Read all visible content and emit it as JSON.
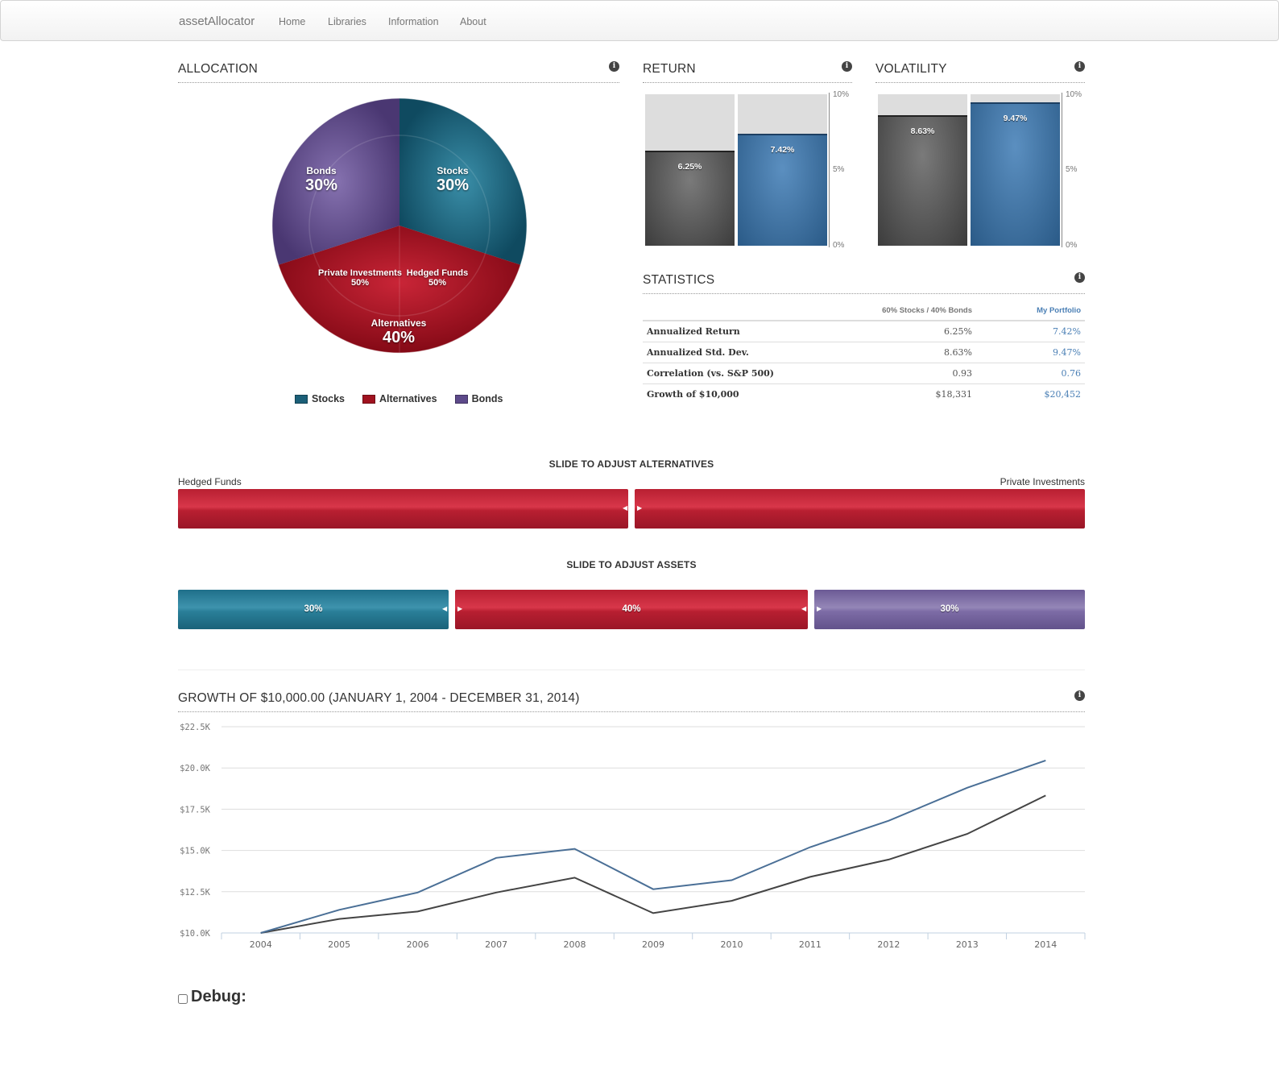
{
  "nav": {
    "brand": "assetAllocator",
    "items": [
      "Home",
      "Libraries",
      "Information",
      "About"
    ]
  },
  "allocation": {
    "title": "ALLOCATION",
    "info_icon": "info-icon",
    "slices": [
      {
        "name": "Stocks",
        "pct": "30%",
        "color": "#1b5f78"
      },
      {
        "name": "Alternatives",
        "pct": "40%",
        "color": "#a0121f"
      },
      {
        "name": "Bonds",
        "pct": "30%",
        "color": "#5d4a8a"
      }
    ],
    "inner": [
      {
        "name": "Private Investments",
        "pct": "50%"
      },
      {
        "name": "Hedged Funds",
        "pct": "50%"
      }
    ],
    "legend": [
      "Stocks",
      "Alternatives",
      "Bonds"
    ]
  },
  "return": {
    "title": "RETURN",
    "ticks": [
      "10%",
      "5%",
      "0%"
    ],
    "values": [
      {
        "label": "6.25%",
        "value": 6.25
      },
      {
        "label": "7.42%",
        "value": 7.42
      }
    ]
  },
  "volatility": {
    "title": "VOLATILITY",
    "ticks": [
      "10%",
      "5%",
      "0%"
    ],
    "values": [
      {
        "label": "8.63%",
        "value": 8.63
      },
      {
        "label": "9.47%",
        "value": 9.47
      }
    ]
  },
  "statistics": {
    "title": "STATISTICS",
    "col1": "60% Stocks / 40% Bonds",
    "col2": "My Portfolio",
    "rows": [
      {
        "label": "Annualized Return",
        "v1": "6.25%",
        "v2": "7.42%"
      },
      {
        "label": "Annualized Std. Dev.",
        "v1": "8.63%",
        "v2": "9.47%"
      },
      {
        "label": "Correlation (vs. S&P 500)",
        "v1": "0.93",
        "v2": "0.76"
      },
      {
        "label": "Growth of $10,000",
        "v1": "$18,331",
        "v2": "$20,452"
      }
    ]
  },
  "sliders": {
    "alternatives_title": "SLIDE TO ADJUST ALTERNATIVES",
    "left_label": "Hedged Funds",
    "right_label": "Private Investments",
    "alternatives_split": 0.5,
    "assets_title": "SLIDE TO ADJUST ASSETS",
    "assets": [
      {
        "name": "Stocks",
        "label": "30%",
        "value": 30
      },
      {
        "name": "Alternatives",
        "label": "40%",
        "value": 40
      },
      {
        "name": "Bonds",
        "label": "30%",
        "value": 30
      }
    ]
  },
  "growth": {
    "title": "GROWTH OF $10,000.00 (JANUARY 1, 2004 - DECEMBER 31, 2014)"
  },
  "chart_data": {
    "type": "line",
    "title": "GROWTH OF $10,000.00 (JANUARY 1, 2004 - DECEMBER 31, 2014)",
    "x": [
      "2004",
      "2005",
      "2006",
      "2007",
      "2008",
      "2009",
      "2010",
      "2011",
      "2012",
      "2013",
      "2014"
    ],
    "y_ticks": [
      "$10.0K",
      "$12.5K",
      "$15.0K",
      "$17.5K",
      "$20.0K",
      "$22.5K"
    ],
    "ylim": [
      10000,
      22500
    ],
    "grid": true,
    "series": [
      {
        "color": "#4a6f96",
        "values": [
          10000,
          11400,
          12450,
          14550,
          15100,
          12650,
          13200,
          15200,
          16800,
          18800,
          20452
        ]
      },
      {
        "color": "#444444",
        "values": [
          10000,
          10850,
          11300,
          12450,
          13350,
          11200,
          11950,
          13400,
          14450,
          16000,
          18331
        ]
      }
    ]
  },
  "debug": {
    "label": "Debug:",
    "checked": false
  }
}
